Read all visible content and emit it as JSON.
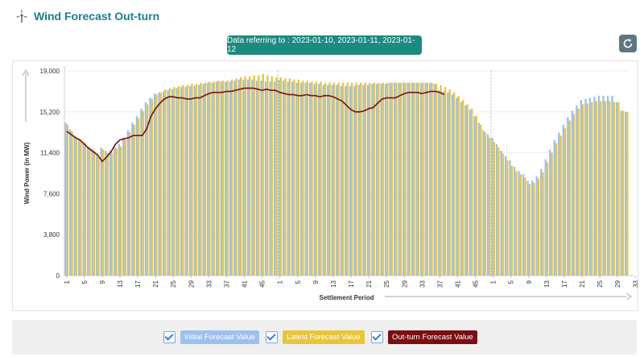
{
  "header": {
    "title": "Wind Forecast Out-turn",
    "date_banner": "Data referring to : 2023-01-10, 2023-01-11, 2023-01-12",
    "icons": {
      "title": "wind-turbine-icon",
      "refresh": "refresh-icon"
    }
  },
  "legend": {
    "items": [
      {
        "label": "Initial Forecast Value",
        "color": "#9ec0ec",
        "checked": true
      },
      {
        "label": "Latest Forecast Value",
        "color": "#e8c53a",
        "checked": true
      },
      {
        "label": "Out-turn Forecast Value",
        "color": "#7a0e12",
        "checked": true
      }
    ]
  },
  "chart_data": {
    "type": "bar",
    "xlabel": "Settlement Period",
    "ylabel": "Wind Power (in MW)",
    "ylim": [
      0,
      19000
    ],
    "yticks": [
      "0",
      "3,800",
      "7,600",
      "11,400",
      "15,200",
      "19,000"
    ],
    "xticks": [
      "1",
      "5",
      "9",
      "13",
      "17",
      "21",
      "25",
      "29",
      "33",
      "37",
      "41",
      "45",
      "1",
      "5",
      "9",
      "13",
      "17",
      "21",
      "25",
      "29",
      "33",
      "37",
      "41",
      "45",
      "1",
      "5",
      "9",
      "13",
      "17",
      "21",
      "25",
      "29",
      "33",
      "37",
      "41",
      "45"
    ],
    "tick_every_periods": 4,
    "days": [
      "2023-01-10",
      "2023-01-11",
      "2023-01-12"
    ],
    "periods_per_day": 48,
    "grid": true,
    "series": [
      {
        "name": "Initial Forecast Value",
        "color": "#9ec0ec",
        "values": [
          14200,
          13600,
          13000,
          12700,
          12400,
          12000,
          11800,
          11200,
          11900,
          11600,
          11600,
          12000,
          12200,
          12800,
          13500,
          14200,
          14800,
          15500,
          16100,
          16500,
          16900,
          17000,
          17100,
          17200,
          17300,
          17400,
          17500,
          17500,
          17600,
          17600,
          17700,
          17800,
          17900,
          17900,
          18000,
          18000,
          18000,
          18000,
          18100,
          18200,
          18200,
          18200,
          18200,
          18100,
          18100,
          18000,
          18000,
          18000,
          18200,
          18100,
          18000,
          18000,
          17900,
          17900,
          17900,
          17900,
          17800,
          17800,
          17700,
          17700,
          17700,
          17700,
          17600,
          17600,
          17600,
          17600,
          17700,
          17700,
          17700,
          17800,
          17800,
          17800,
          17800,
          17900,
          17900,
          17900,
          17900,
          17900,
          17900,
          17900,
          17900,
          17900,
          17900,
          17800,
          17200,
          17100,
          17000,
          16800,
          16500,
          16100,
          15800,
          15400,
          14800,
          14200,
          13500,
          13100,
          12800,
          12200,
          11600,
          11100,
          10700,
          10100,
          9700,
          9400,
          8800,
          8800,
          9200,
          9900,
          10800,
          11700,
          12600,
          13300,
          14000,
          14700,
          15300,
          15800,
          16300,
          16400,
          16500,
          16600,
          16700,
          16700,
          16700,
          16700,
          16100,
          15300,
          15200
        ]
      },
      {
        "name": "Latest Forecast Value",
        "color": "#e8c53a",
        "values": [
          14000,
          13400,
          12800,
          12500,
          12300,
          11900,
          11600,
          11000,
          11700,
          11400,
          11400,
          11800,
          12000,
          12600,
          13300,
          14000,
          14600,
          15300,
          15900,
          16400,
          16800,
          17000,
          17300,
          17400,
          17500,
          17600,
          17700,
          17700,
          17800,
          17800,
          17900,
          17900,
          18000,
          18000,
          18100,
          18100,
          18100,
          18200,
          18300,
          18400,
          18500,
          18500,
          18600,
          18600,
          18700,
          18600,
          18500,
          18400,
          18400,
          18300,
          18300,
          18200,
          18200,
          18100,
          18100,
          18000,
          18000,
          18000,
          17900,
          17900,
          17900,
          17900,
          17900,
          17900,
          17900,
          17900,
          17900,
          17900,
          17900,
          17900,
          17900,
          17900,
          17900,
          17900,
          17900,
          17900,
          17900,
          17900,
          17900,
          17900,
          17900,
          17900,
          17900,
          17800,
          17700,
          17500,
          17300,
          17000,
          16700,
          16300,
          15900,
          15500,
          14800,
          14000,
          13300,
          12800,
          12400,
          11900,
          11300,
          10700,
          10200,
          9700,
          9400,
          9100,
          8500,
          8600,
          9000,
          9600,
          10500,
          11400,
          12300,
          13000,
          13700,
          14400,
          15000,
          15500,
          15900,
          16000,
          16100,
          16200,
          16200,
          16200,
          16200,
          16100,
          16100,
          15300,
          15200
        ]
      },
      {
        "name": "Out-turn Forecast Value",
        "color": "#7a0e12",
        "values": [
          13400,
          13100,
          12800,
          12600,
          12200,
          11800,
          11500,
          11200,
          10600,
          11000,
          11500,
          12200,
          12600,
          12700,
          12800,
          13000,
          13000,
          13000,
          13600,
          14800,
          15500,
          16000,
          16400,
          16600,
          16600,
          16500,
          16500,
          16400,
          16400,
          16500,
          16500,
          16700,
          16900,
          17000,
          17000,
          17000,
          17100,
          17100,
          17200,
          17300,
          17400,
          17400,
          17400,
          17300,
          17200,
          17300,
          17200,
          17200,
          17000,
          16900,
          16800,
          16800,
          16700,
          16700,
          16800,
          16700,
          16700,
          16600,
          16700,
          16700,
          16600,
          16400,
          16200,
          15800,
          15400,
          15200,
          15200,
          15300,
          15500,
          15600,
          16000,
          16400,
          16500,
          16500,
          16500,
          16700,
          16900,
          17000,
          17000,
          17000,
          16900,
          17000,
          17100,
          17100,
          17000,
          16800
        ]
      }
    ]
  }
}
